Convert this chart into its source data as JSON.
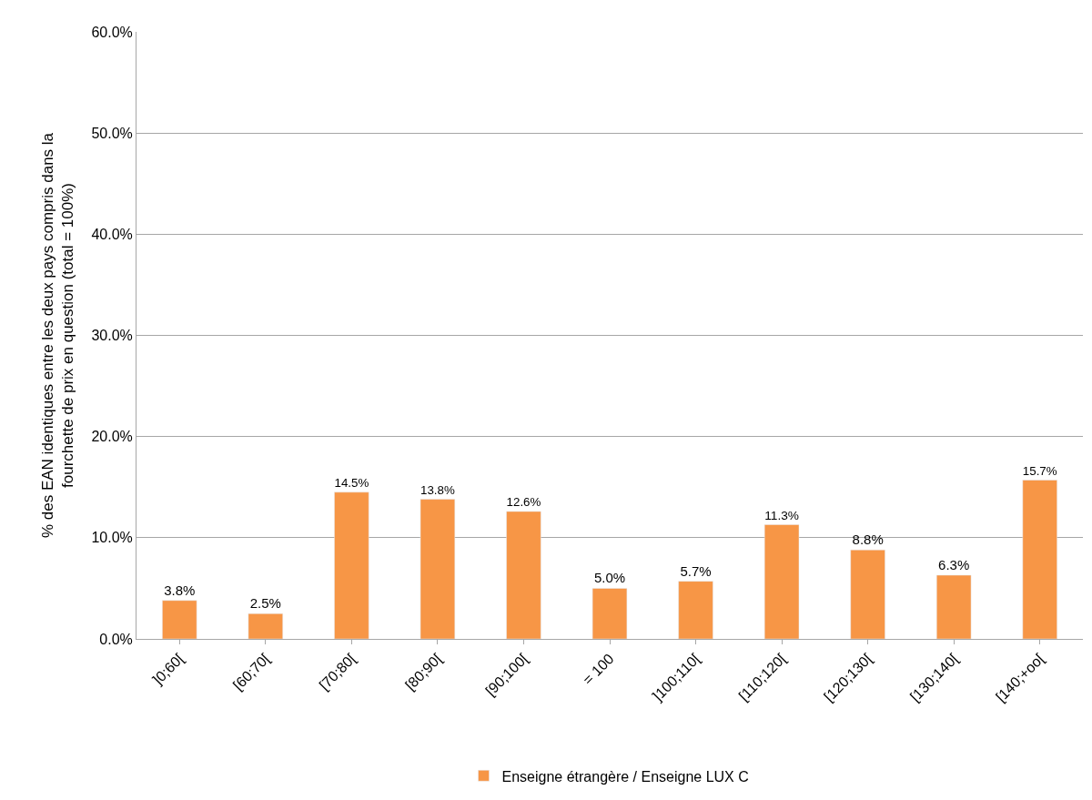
{
  "chart_data": {
    "type": "bar",
    "ylabel": "% des EAN identiques entre les deux pays compris dans la fourchette de prix en question (total = 100%)",
    "categories": [
      "]0;60[",
      "[60;70[",
      "[70;80[",
      "[80;90[",
      "[90;100[",
      "= 100",
      "]100;110[",
      "[110;120[",
      "[120;130[",
      "[130;140[",
      "[140;+oo["
    ],
    "series": [
      {
        "name": "Enseigne étrangère / Enseigne LUX C",
        "color": "#f79646",
        "values": [
          3.8,
          2.5,
          14.5,
          13.8,
          12.6,
          5.0,
          5.7,
          11.3,
          8.8,
          6.3,
          15.7
        ],
        "value_labels": [
          "3.8%",
          "2.5%",
          "14.5%",
          "13.8%",
          "12.6%",
          "5.0%",
          "5.7%",
          "11.3%",
          "8.8%",
          "6.3%",
          "15.7%"
        ]
      }
    ],
    "ylim": [
      0,
      60
    ],
    "yticks": [
      {
        "value": 0,
        "label": "0.0%"
      },
      {
        "value": 10,
        "label": "10.0%"
      },
      {
        "value": 20,
        "label": "20.0%"
      },
      {
        "value": 30,
        "label": "30.0%"
      },
      {
        "value": 40,
        "label": "40.0%"
      },
      {
        "value": 50,
        "label": "50.0%"
      },
      {
        "value": 60,
        "label": "60.0%"
      }
    ],
    "grid": "y",
    "legend": "bottom"
  }
}
